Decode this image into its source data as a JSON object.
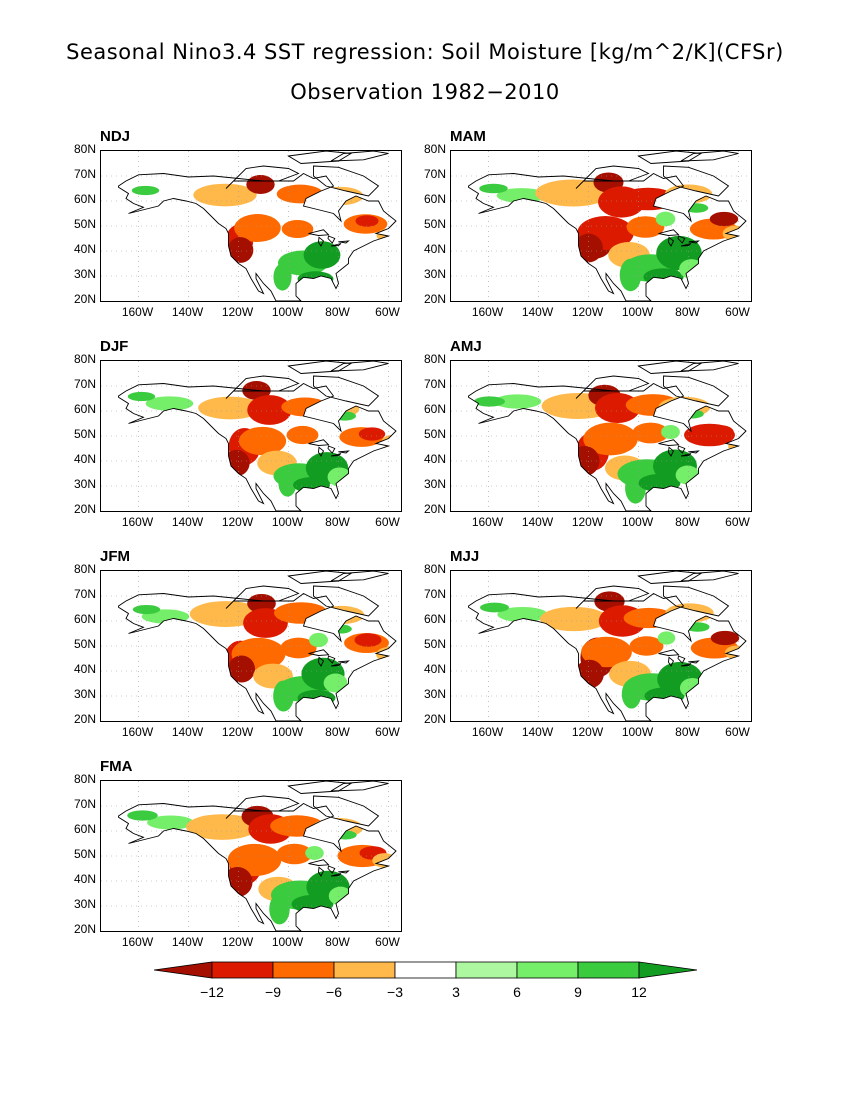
{
  "title_line1": "Seasonal Nino3.4 SST regression: Soil Moisture [kg/m^2/K](CFSr)",
  "title_line2": "Observation 1982−2010",
  "lat_ticks": [
    "80N",
    "70N",
    "60N",
    "50N",
    "40N",
    "30N",
    "20N"
  ],
  "lon_ticks": [
    "160W",
    "140W",
    "120W",
    "100W",
    "80W",
    "60W"
  ],
  "panels": [
    {
      "label": "NDJ",
      "intensity": 0.55
    },
    {
      "label": "MAM",
      "intensity": 1.0
    },
    {
      "label": "DJF",
      "intensity": 0.7
    },
    {
      "label": "AMJ",
      "intensity": 1.0
    },
    {
      "label": "JFM",
      "intensity": 0.85
    },
    {
      "label": "MJJ",
      "intensity": 0.9
    },
    {
      "label": "FMA",
      "intensity": 0.95
    }
  ],
  "colorbar": {
    "levels": [
      "−12",
      "−9",
      "−6",
      "−3",
      "3",
      "6",
      "9",
      "12"
    ],
    "colors": [
      "#a50f00",
      "#dc1a00",
      "#ff6a00",
      "#ffb84a",
      "#ffffff",
      "#adf7a0",
      "#75ee69",
      "#3acb3f",
      "#129c21"
    ]
  },
  "colors": {
    "strong_negative": "#a50f00",
    "negative": "#dc1a00",
    "moderate_negative": "#ff6a00",
    "weak_negative": "#ffb84a",
    "weak_positive": "#adf7a0",
    "moderate_positive": "#75ee69",
    "positive": "#3acb3f",
    "strong_positive": "#129c21"
  }
}
